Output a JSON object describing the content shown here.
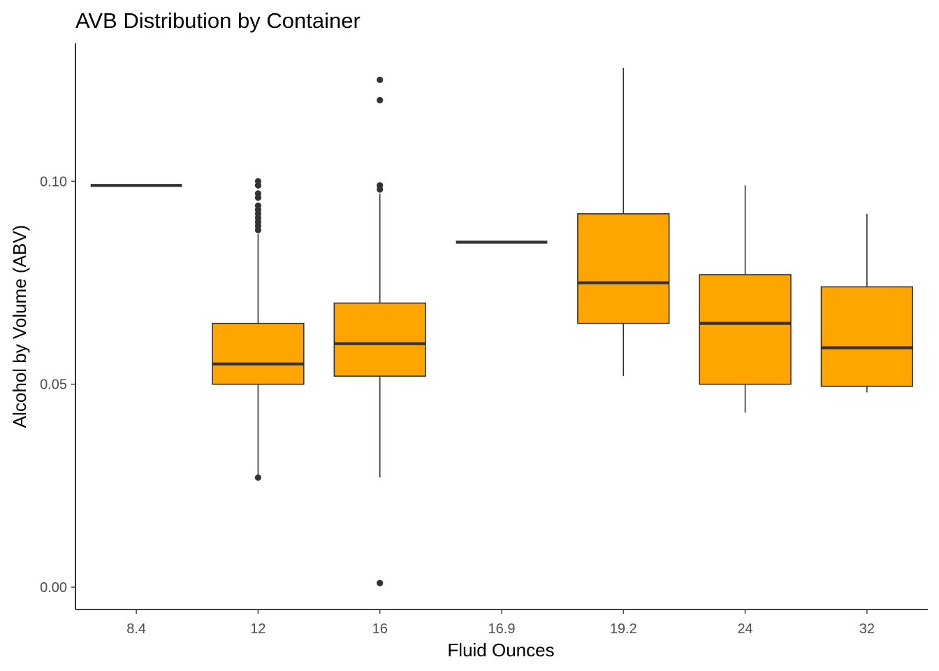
{
  "chart_data": {
    "type": "box",
    "title": "AVB Distribution by Container",
    "xlabel": "Fluid Ounces",
    "ylabel": "Alcohol by Volume (ABV)",
    "ylim": [
      -0.0055,
      0.134
    ],
    "y_ticks": [
      "0.00",
      "0.05",
      "0.10"
    ],
    "y_tick_values": [
      0.0,
      0.05,
      0.1
    ],
    "grid": false,
    "legend": "none",
    "categories": [
      "8.4",
      "12",
      "16",
      "16.9",
      "19.2",
      "24",
      "32"
    ],
    "boxes": [
      {
        "category": "8.4",
        "lower_whisker": 0.099,
        "q1": 0.099,
        "median": 0.099,
        "q3": 0.099,
        "upper_whisker": 0.099,
        "outliers": []
      },
      {
        "category": "12",
        "lower_whisker": 0.027,
        "q1": 0.05,
        "median": 0.055,
        "q3": 0.065,
        "upper_whisker": 0.087,
        "outliers": [
          0.027,
          0.088,
          0.089,
          0.09,
          0.091,
          0.092,
          0.093,
          0.094,
          0.096,
          0.097,
          0.099,
          0.1
        ]
      },
      {
        "category": "16",
        "lower_whisker": 0.027,
        "q1": 0.052,
        "median": 0.06,
        "q3": 0.07,
        "upper_whisker": 0.097,
        "outliers": [
          0.001,
          0.098,
          0.099,
          0.12,
          0.125
        ]
      },
      {
        "category": "16.9",
        "lower_whisker": 0.085,
        "q1": 0.085,
        "median": 0.085,
        "q3": 0.085,
        "upper_whisker": 0.085,
        "outliers": []
      },
      {
        "category": "19.2",
        "lower_whisker": 0.052,
        "q1": 0.065,
        "median": 0.075,
        "q3": 0.092,
        "upper_whisker": 0.128,
        "outliers": []
      },
      {
        "category": "24",
        "lower_whisker": 0.043,
        "q1": 0.05,
        "median": 0.065,
        "q3": 0.077,
        "upper_whisker": 0.099,
        "outliers": []
      },
      {
        "category": "32",
        "lower_whisker": 0.048,
        "q1": 0.0495,
        "median": 0.059,
        "q3": 0.074,
        "upper_whisker": 0.092,
        "outliers": []
      }
    ]
  },
  "colors": {
    "box_fill": "#FFA500",
    "box_line": "#333333",
    "axis_line": "#000000",
    "tick_text": "#4d4d4d"
  }
}
